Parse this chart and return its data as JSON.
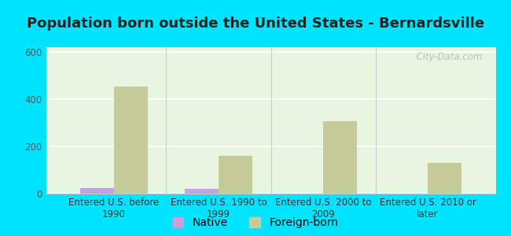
{
  "title": "Population born outside the United States - Bernardsville",
  "categories": [
    "Entered U.S. before\n1990",
    "Entered U.S. 1990 to\n1999",
    "Entered U.S. 2000 to\n2009",
    "Entered U.S. 2010 or\nlater"
  ],
  "native_values": [
    25,
    20,
    0,
    0
  ],
  "foreign_born_values": [
    453,
    160,
    308,
    130
  ],
  "native_color": "#c9a0dc",
  "foreign_born_color": "#c5cc9a",
  "plot_bg_top": "#e8f5e0",
  "plot_bg_bottom": "#f0faf0",
  "outer_background": "#00e5ff",
  "ylim": [
    0,
    620
  ],
  "yticks": [
    0,
    200,
    400,
    600
  ],
  "bar_width": 0.32,
  "title_fontsize": 13,
  "tick_fontsize": 8.5,
  "legend_fontsize": 10,
  "watermark": "  City-Data.com"
}
